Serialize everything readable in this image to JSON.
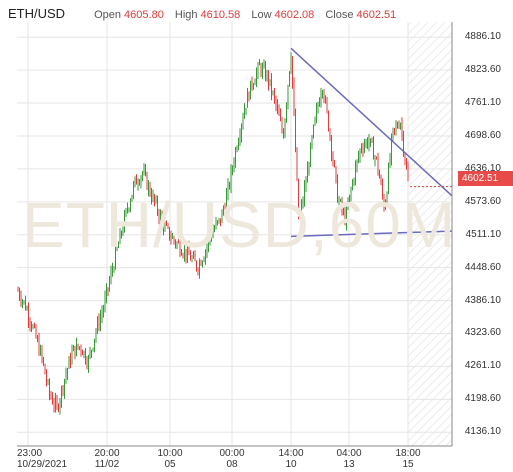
{
  "header": {
    "symbol": "ETH/USD",
    "open_label": "Open",
    "open_value": "4605.80",
    "high_label": "High",
    "high_value": "4610.58",
    "low_label": "Low",
    "low_value": "4602.08",
    "close_label": "Close",
    "close_value": "4602.51"
  },
  "watermark": "ETH/USD,60M",
  "current_price_label": "4602.51",
  "colors": {
    "up": "#3a9a3a",
    "down": "#e03c3c",
    "trendline": "#6a6ac0",
    "grid": "#e6e6e6",
    "price_tag": "#e84a4a"
  },
  "chart_data": {
    "type": "candlestick",
    "title": "ETH/USD",
    "interval": "60M",
    "y_ticks": [
      "4886.10",
      "4823.60",
      "4761.10",
      "4698.60",
      "4636.10",
      "4573.60",
      "4511.10",
      "4448.60",
      "4386.10",
      "4323.60",
      "4261.10",
      "4198.60",
      "4136.10"
    ],
    "ylim": [
      4110,
      4915
    ],
    "x_ticks": [
      {
        "time": "23:00",
        "date": "10/29/2021"
      },
      {
        "time": "20:00",
        "date": "11/02"
      },
      {
        "time": "10:00",
        "date": "05"
      },
      {
        "time": "00:00",
        "date": "08"
      },
      {
        "time": "14:00",
        "date": "10"
      },
      {
        "time": "04:00",
        "date": "13"
      },
      {
        "time": "18:00",
        "date": "15"
      }
    ],
    "last_close": 4602.51,
    "grid": true,
    "price_path": [
      4405,
      4375,
      4330,
      4280,
      4210,
      4180,
      4240,
      4290,
      4300,
      4270,
      4330,
      4375,
      4440,
      4500,
      4560,
      4610,
      4630,
      4590,
      4555,
      4520,
      4500,
      4485,
      4470,
      4450,
      4480,
      4520,
      4540,
      4600,
      4680,
      4750,
      4800,
      4830,
      4810,
      4760,
      4700,
      4860,
      4530,
      4620,
      4720,
      4800,
      4700,
      4580,
      4540,
      4620,
      4680,
      4690,
      4650,
      4560,
      4700,
      4730,
      4610
    ],
    "trendlines": [
      {
        "name": "descending",
        "points": [
          [
            0,
            4865
          ],
          [
            1,
            4585
          ]
        ]
      },
      {
        "name": "support",
        "points": [
          [
            0,
            4508
          ],
          [
            1,
            4518
          ]
        ]
      }
    ]
  }
}
